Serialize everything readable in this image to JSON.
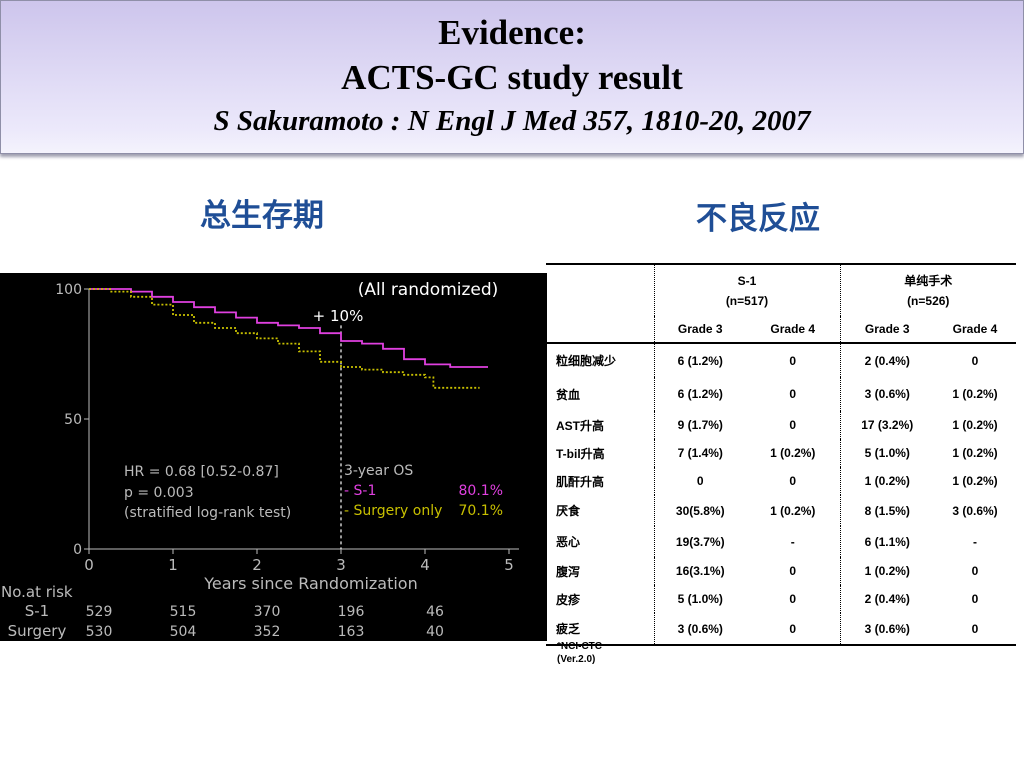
{
  "slide": {
    "title_line1": "Evidence:",
    "title_line2": "ACTS-GC  study result",
    "title_line3": "S Sakuramoto : N Engl J Med 357, 1810-20, 2007",
    "left_heading": "总生存期",
    "right_heading": "不良反应"
  },
  "colors": {
    "heading": "#1f4e96",
    "s1_curve": "#e040e0",
    "surgery_curve": "#c8c000",
    "chart_background": "#000000",
    "title_band": "#dcd6f4"
  },
  "chart_data": {
    "type": "line",
    "title": "(All randomized)",
    "xlabel": "Years since Randomization",
    "ylabel": "",
    "xlim": [
      0,
      5
    ],
    "ylim": [
      0,
      100
    ],
    "x_ticks": [
      "0",
      "1",
      "2",
      "3",
      "4",
      "5"
    ],
    "y_ticks": [
      "0",
      "50",
      "100"
    ],
    "annotation_gain": "+ 10%",
    "stats": {
      "hr": "HR = 0.68 [0.52-0.87]",
      "p": "p = 0.003",
      "test": "(stratified log-rank test)"
    },
    "os_box": {
      "title": "3-year OS",
      "s1_label": "- S-1",
      "s1_value": "80.1%",
      "surgery_label": "- Surgery only",
      "surgery_value": "70.1%"
    },
    "series": [
      {
        "name": "S-1",
        "x": [
          0,
          0.3,
          0.5,
          0.75,
          1.0,
          1.25,
          1.5,
          1.75,
          2.0,
          2.25,
          2.5,
          2.75,
          3.0,
          3.25,
          3.5,
          3.75,
          4.0,
          4.3,
          4.6,
          4.75
        ],
        "y": [
          100,
          100,
          99,
          97,
          95,
          93,
          91,
          89,
          87,
          86,
          85,
          83,
          80,
          79,
          77,
          73,
          71,
          70,
          70,
          70
        ]
      },
      {
        "name": "Surgery",
        "x": [
          0,
          0.25,
          0.5,
          0.75,
          1.0,
          1.25,
          1.5,
          1.75,
          2.0,
          2.25,
          2.5,
          2.75,
          3.0,
          3.25,
          3.5,
          3.75,
          4.0,
          4.1,
          4.5,
          4.65
        ],
        "y": [
          100,
          99,
          97,
          94,
          90,
          87,
          85,
          83,
          81,
          79,
          76,
          72,
          70,
          69,
          68,
          67,
          66,
          62,
          62,
          62
        ]
      }
    ],
    "at_risk": {
      "label_line1": "No.at  risk",
      "rows": [
        {
          "name": "S-1",
          "values": [
            "529",
            "515",
            "370",
            "196",
            "46"
          ]
        },
        {
          "name": "Surgery",
          "values": [
            "530",
            "504",
            "352",
            "163",
            "40"
          ]
        }
      ]
    }
  },
  "adverse_table": {
    "group1": {
      "name": "S-1",
      "n": "(n=517)"
    },
    "group2": {
      "name": "单纯手术",
      "n": "(n=526)"
    },
    "grade_headers": [
      "Grade 3",
      "Grade 4",
      "Grade 3",
      "Grade 4"
    ],
    "rows": [
      {
        "label": "粒细胞减少",
        "values": [
          "6 (1.2%)",
          "0",
          "2 (0.4%)",
          "0"
        ]
      },
      {
        "label": "贫血",
        "values": [
          "6 (1.2%)",
          "0",
          "3 (0.6%)",
          "1 (0.2%)"
        ]
      },
      {
        "label": "AST升高",
        "values": [
          "9 (1.7%)",
          "0",
          "17 (3.2%)",
          "1 (0.2%)"
        ]
      },
      {
        "label": "T-bil升高",
        "values": [
          "7 (1.4%)",
          "1 (0.2%)",
          "5 (1.0%)",
          "1 (0.2%)"
        ]
      },
      {
        "label": "肌酐升高",
        "values": [
          "0",
          "0",
          "1 (0.2%)",
          "1 (0.2%)"
        ]
      },
      {
        "label": "厌食",
        "values": [
          "30(5.8%)",
          "1 (0.2%)",
          "8 (1.5%)",
          "3 (0.6%)"
        ]
      },
      {
        "label": "恶心",
        "values": [
          "19(3.7%)",
          "-",
          "6 (1.1%)",
          "-"
        ]
      },
      {
        "label": "腹泻",
        "values": [
          "16(3.1%)",
          "0",
          "1 (0.2%)",
          "0"
        ]
      },
      {
        "label": "皮疹",
        "values": [
          "5 (1.0%)",
          "0",
          "2 (0.4%)",
          "0"
        ]
      },
      {
        "label": "疲乏",
        "values": [
          "3 (0.6%)",
          "0",
          "3 (0.6%)",
          "0"
        ]
      }
    ],
    "footnote_line1": "*NCI-CTC",
    "footnote_line2": "(Ver.2.0)"
  }
}
